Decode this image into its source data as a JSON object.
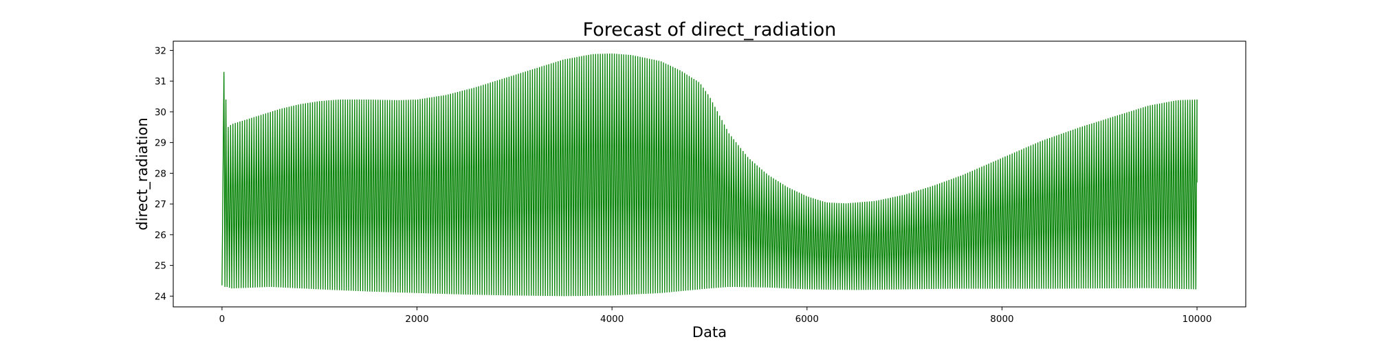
{
  "chart_data": {
    "type": "line",
    "title": "Forecast of direct_radiation",
    "xlabel": "Data",
    "ylabel": "direct_radiation",
    "xlim": [
      -500,
      10500
    ],
    "ylim": [
      23.65,
      32.3
    ],
    "x_ticks": [
      0,
      2000,
      4000,
      6000,
      8000,
      10000
    ],
    "y_ticks": [
      24,
      25,
      26,
      27,
      28,
      29,
      30,
      31,
      32
    ],
    "grid": false,
    "legend": "none",
    "series": [
      {
        "color": "#008000",
        "description_points": {
          "upper_envelope": {
            "x": [
              20,
              60,
              100,
              200,
              400,
              600,
              800,
              1000,
              1200,
              1500,
              1800,
              2000,
              2300,
              2600,
              2900,
              3200,
              3500,
              3800,
              4000,
              4200,
              4500,
              4700,
              4900,
              5000,
              5100,
              5200,
              5400,
              5600,
              5800,
              6000,
              6200,
              6400,
              6700,
              7000,
              7300,
              7600,
              8000,
              8400,
              8800,
              9200,
              9500,
              9800,
              10000
            ],
            "y": [
              31.3,
              29.5,
              29.6,
              29.7,
              29.9,
              30.1,
              30.25,
              30.35,
              30.4,
              30.4,
              30.38,
              30.4,
              30.55,
              30.8,
              31.1,
              31.4,
              31.7,
              31.88,
              31.9,
              31.85,
              31.65,
              31.35,
              30.95,
              30.5,
              29.9,
              29.3,
              28.5,
              27.95,
              27.55,
              27.25,
              27.05,
              27.02,
              27.1,
              27.3,
              27.6,
              27.95,
              28.5,
              29.05,
              29.5,
              29.9,
              30.2,
              30.38,
              30.4
            ]
          },
          "lower_envelope": {
            "x": [
              0,
              100,
              500,
              1000,
              1500,
              2000,
              2500,
              3000,
              3500,
              4000,
              4500,
              5000,
              5200,
              5600,
              6000,
              6500,
              7000,
              7500,
              8000,
              8500,
              9000,
              9500,
              10000
            ],
            "y": [
              24.35,
              24.25,
              24.3,
              24.22,
              24.15,
              24.1,
              24.05,
              24.02,
              24.0,
              24.02,
              24.1,
              24.25,
              24.3,
              24.28,
              24.22,
              24.2,
              24.22,
              24.24,
              24.24,
              24.24,
              24.25,
              24.26,
              24.22
            ]
          }
        }
      }
    ]
  }
}
